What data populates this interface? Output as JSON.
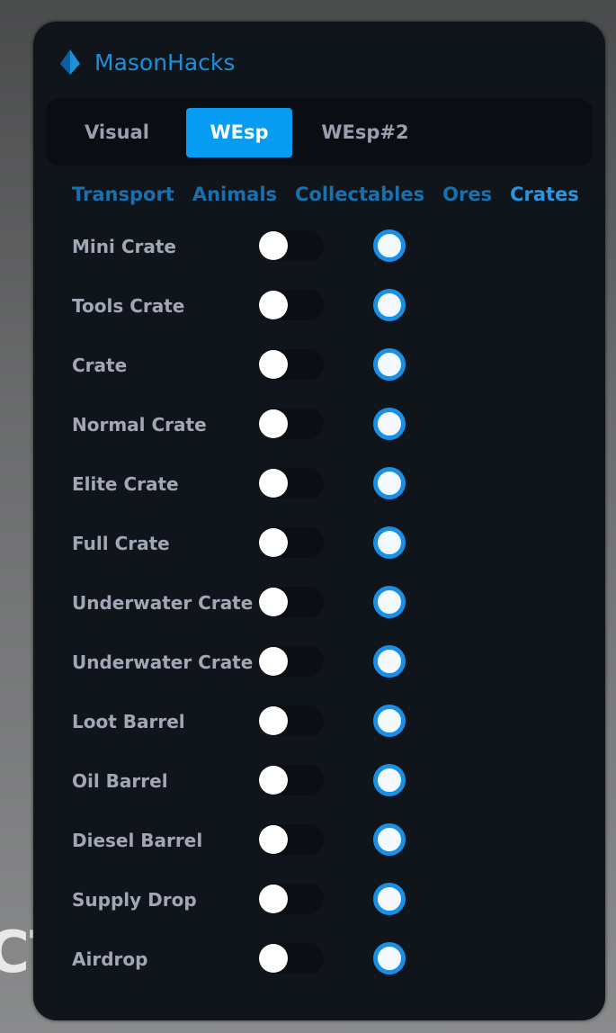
{
  "background_text": "CT",
  "app": {
    "title": "MasonHacks",
    "accent": "#089bf2"
  },
  "tabs": [
    {
      "label": "Visual",
      "active": false
    },
    {
      "label": "WEsp",
      "active": true
    },
    {
      "label": "WEsp#2",
      "active": false
    }
  ],
  "subtabs": [
    {
      "label": "Transport",
      "active": false
    },
    {
      "label": "Animals",
      "active": false
    },
    {
      "label": "Collectables",
      "active": false
    },
    {
      "label": "Ores",
      "active": false
    },
    {
      "label": "Crates",
      "active": true
    }
  ],
  "items": [
    {
      "label": "Mini Crate",
      "toggle": false,
      "radio": true
    },
    {
      "label": "Tools Crate",
      "toggle": false,
      "radio": true
    },
    {
      "label": "Crate",
      "toggle": false,
      "radio": true
    },
    {
      "label": "Normal Crate",
      "toggle": false,
      "radio": true
    },
    {
      "label": "Elite Crate",
      "toggle": false,
      "radio": true
    },
    {
      "label": "Full Crate",
      "toggle": false,
      "radio": true
    },
    {
      "label": "Underwater Crate",
      "toggle": false,
      "radio": true
    },
    {
      "label": "Underwater Crate",
      "toggle": false,
      "radio": true
    },
    {
      "label": "Loot Barrel",
      "toggle": false,
      "radio": true
    },
    {
      "label": "Oil Barrel",
      "toggle": false,
      "radio": true
    },
    {
      "label": "Diesel Barrel",
      "toggle": false,
      "radio": true
    },
    {
      "label": "Supply Drop",
      "toggle": false,
      "radio": true
    },
    {
      "label": "Airdrop",
      "toggle": false,
      "radio": true
    }
  ]
}
